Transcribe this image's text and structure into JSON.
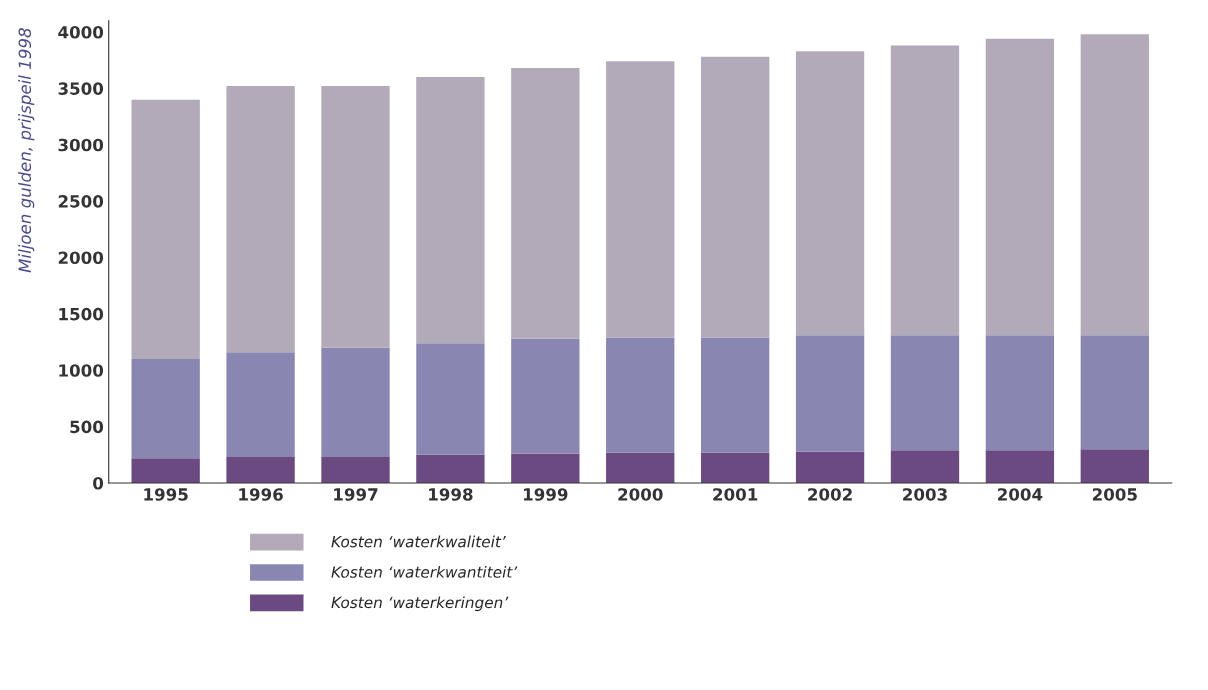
{
  "chart_data": {
    "type": "bar",
    "stacked": true,
    "ylabel": "Miljoen gulden, prijspeil 1998",
    "categories": [
      "1995",
      "1996",
      "1997",
      "1998",
      "1999",
      "2000",
      "2001",
      "2002",
      "2003",
      "2004",
      "2005"
    ],
    "series": [
      {
        "name": "Kosten ‘waterkeringen’",
        "color": "#6b4a82",
        "values": [
          220,
          230,
          230,
          250,
          260,
          270,
          270,
          280,
          290,
          290,
          300
        ]
      },
      {
        "name": "Kosten ‘waterkwantiteit’",
        "color": "#8a86b2",
        "values": [
          880,
          930,
          970,
          990,
          1020,
          1020,
          1020,
          1030,
          1020,
          1020,
          1010
        ]
      },
      {
        "name": "Kosten ‘waterkwaliteit’",
        "color": "#b3aab9",
        "values": [
          2300,
          2360,
          2320,
          2360,
          2400,
          2450,
          2490,
          2520,
          2570,
          2630,
          2670
        ]
      }
    ],
    "ylim": [
      0,
      4100
    ],
    "yticks": [
      0,
      500,
      1000,
      1500,
      2000,
      2500,
      3000,
      3500,
      4000
    ],
    "grid": false,
    "legend": "bottom"
  }
}
